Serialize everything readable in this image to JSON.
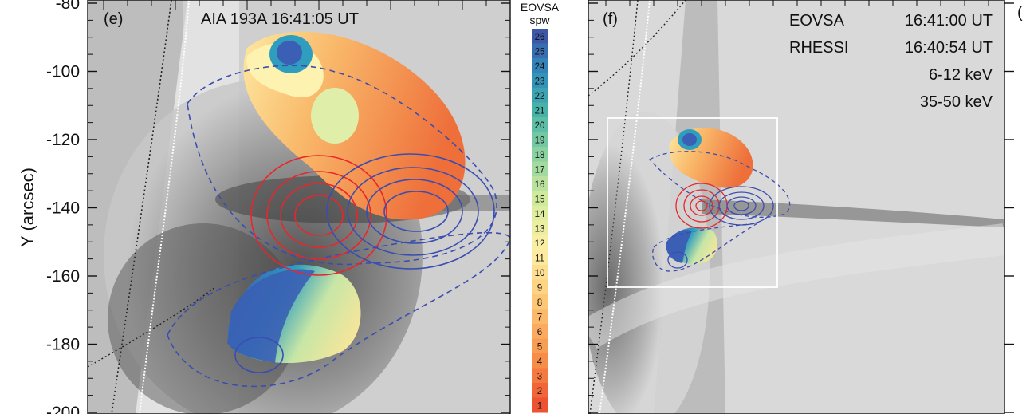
{
  "chart_data": [
    {
      "type": "image-contour",
      "panel_label": "(e)",
      "title": "AIA 193A  16:41:05 UT",
      "ylabel": "Y (arcsec)",
      "yticks": [
        -80,
        -100,
        -120,
        -140,
        -160,
        -180,
        -200
      ],
      "ylim": [
        -200,
        -80
      ],
      "contours_red": "6-12 keV",
      "contours_blue": "35-50 keV"
    },
    {
      "type": "image-contour",
      "panel_label": "(f)",
      "annotations": [
        {
          "label": "EOVSA",
          "time": "16:41:00 UT"
        },
        {
          "label": "RHESSI",
          "time": "16:40:54 UT"
        }
      ],
      "legend": [
        {
          "name": "6-12 keV",
          "color": "#e8262c"
        },
        {
          "name": "35-50 keV",
          "color": "#3a4db0"
        }
      ]
    }
  ],
  "colorbar": {
    "title_line1": "EOVSA",
    "title_line2": "spw",
    "levels": [
      "26",
      "25",
      "24",
      "23",
      "22",
      "21",
      "20",
      "19",
      "18",
      "17",
      "16",
      "15",
      "14",
      "13",
      "12",
      "11",
      "10",
      "9",
      "8",
      "7",
      "6",
      "5",
      "4",
      "3",
      "2",
      "1"
    ]
  },
  "colors": {
    "red_contour": "#e8262c",
    "blue_contour": "#3a4db0",
    "box": "#ffffff"
  }
}
